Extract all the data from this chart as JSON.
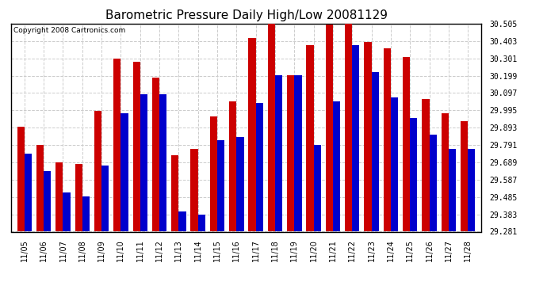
{
  "title": "Barometric Pressure Daily High/Low 20081129",
  "copyright": "Copyright 2008 Cartronics.com",
  "dates": [
    "11/05",
    "11/06",
    "11/07",
    "11/08",
    "11/09",
    "11/10",
    "11/11",
    "11/12",
    "11/13",
    "11/14",
    "11/15",
    "11/16",
    "11/17",
    "11/18",
    "11/19",
    "11/20",
    "11/21",
    "11/22",
    "11/23",
    "11/24",
    "11/25",
    "11/26",
    "11/27",
    "11/28"
  ],
  "highs": [
    29.9,
    29.79,
    29.69,
    29.68,
    29.99,
    30.3,
    30.28,
    30.19,
    29.73,
    29.77,
    29.96,
    30.05,
    30.42,
    30.51,
    30.2,
    30.38,
    30.5,
    30.51,
    30.4,
    30.36,
    30.31,
    30.06,
    29.98,
    29.93
  ],
  "lows": [
    29.74,
    29.64,
    29.51,
    29.49,
    29.67,
    29.98,
    30.09,
    30.09,
    29.4,
    29.38,
    29.82,
    29.84,
    30.04,
    30.2,
    30.2,
    29.79,
    30.05,
    30.38,
    30.22,
    30.07,
    29.95,
    29.85,
    29.77,
    29.77
  ],
  "yticks": [
    29.281,
    29.383,
    29.485,
    29.587,
    29.689,
    29.791,
    29.893,
    29.995,
    30.097,
    30.199,
    30.301,
    30.403,
    30.505
  ],
  "ymin": 29.281,
  "ymax": 30.505,
  "high_color": "#cc0000",
  "low_color": "#0000cc",
  "bg_color": "#ffffff",
  "grid_color": "#cccccc",
  "title_fontsize": 11,
  "bar_width": 0.38,
  "figwidth": 6.9,
  "figheight": 3.75,
  "dpi": 100
}
